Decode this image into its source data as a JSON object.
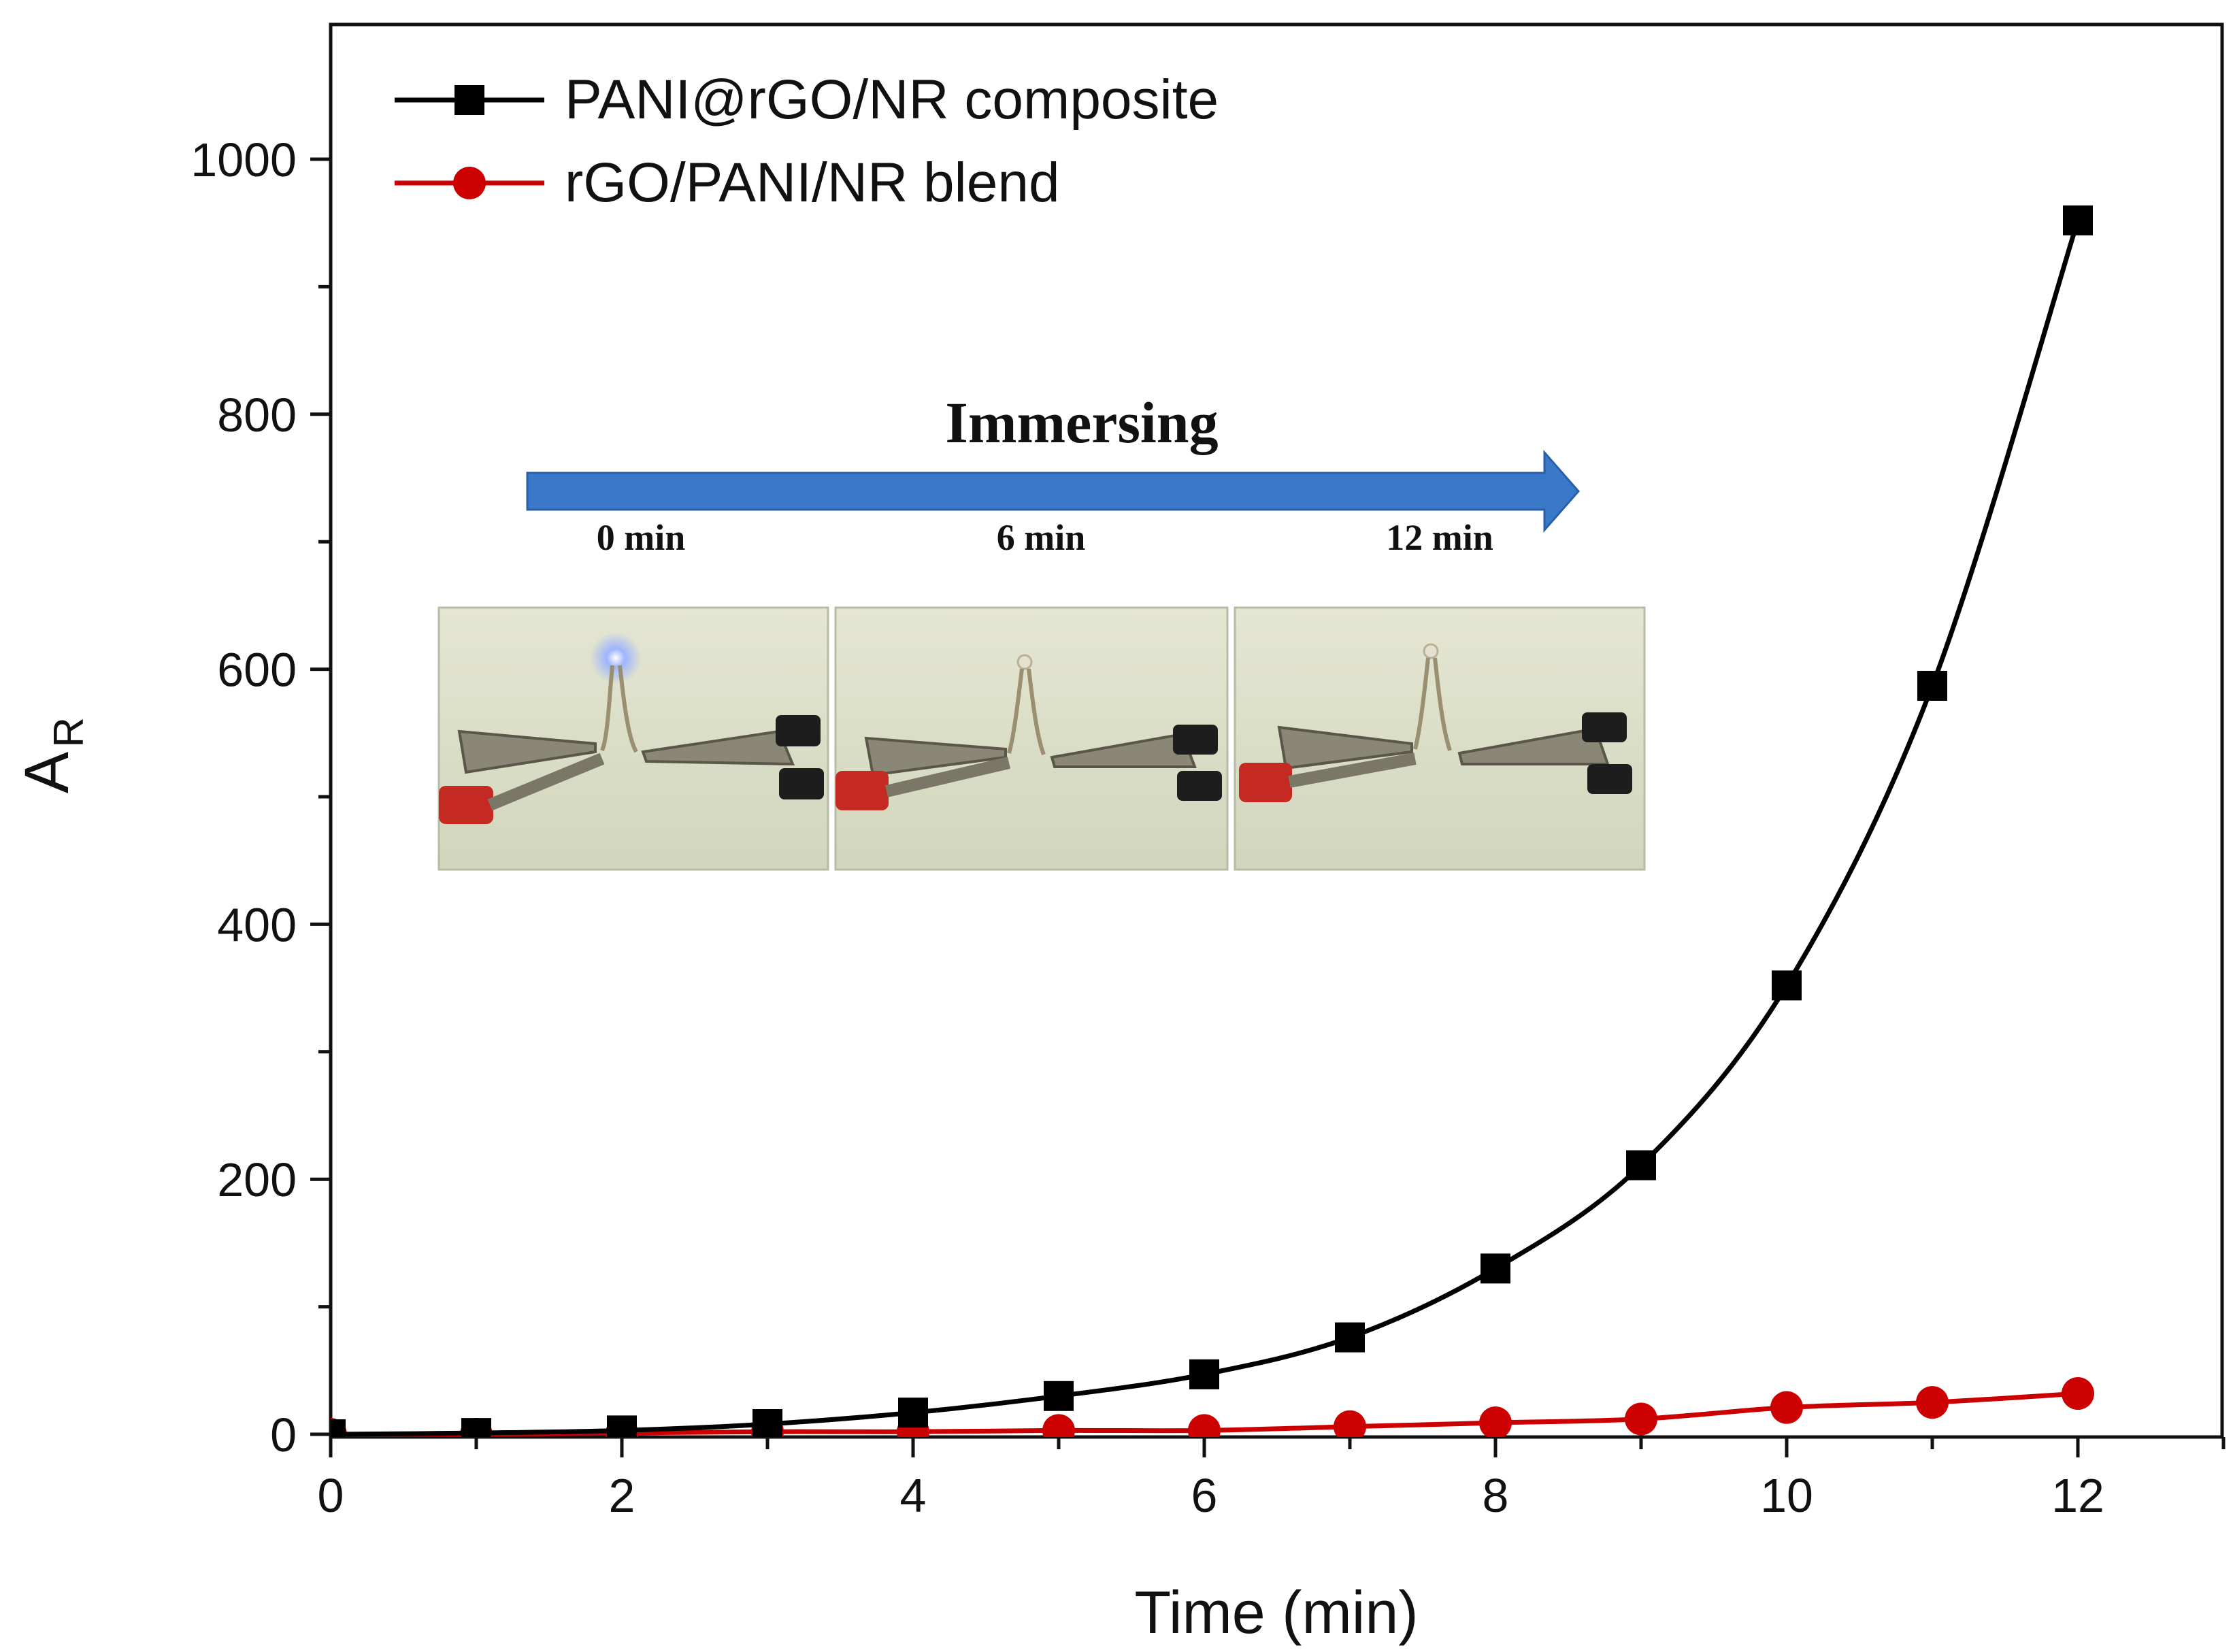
{
  "chart_data": {
    "type": "line",
    "title": "",
    "xlabel": "Time (min)",
    "ylabel": "A",
    "ylabel_sub": "R",
    "xlim": [
      0,
      13
    ],
    "ylim": [
      -10,
      1100
    ],
    "xticks": [
      0,
      2,
      4,
      6,
      8,
      10,
      12
    ],
    "yticks": [
      0,
      200,
      400,
      600,
      800,
      1000
    ],
    "legend_position": "top-left",
    "series": [
      {
        "name": "PANI@rGO/NR composite",
        "color": "#000000",
        "marker": "square",
        "x": [
          0,
          1,
          2,
          3,
          4,
          5,
          6,
          7,
          8,
          9,
          10,
          11,
          12
        ],
        "values": [
          0,
          1,
          3,
          8,
          17,
          30,
          47,
          76,
          130,
          211,
          352,
          587,
          952
        ]
      },
      {
        "name": "rGO/PANI/NR blend",
        "color": "#cc0000",
        "marker": "circle",
        "x": [
          0,
          1,
          2,
          3,
          4,
          5,
          6,
          7,
          8,
          9,
          10,
          11,
          12
        ],
        "values": [
          0,
          0,
          1,
          2,
          2,
          3,
          3,
          6,
          9,
          12,
          21,
          25,
          32
        ]
      }
    ],
    "inset": {
      "arrow_label": "Immersing",
      "time_labels": [
        "0 min",
        "6 min",
        "12 min"
      ],
      "photo_descriptions": [
        "LED-on",
        "LED-off",
        "LED-off"
      ],
      "arrow_color": "#3a78c8"
    }
  }
}
